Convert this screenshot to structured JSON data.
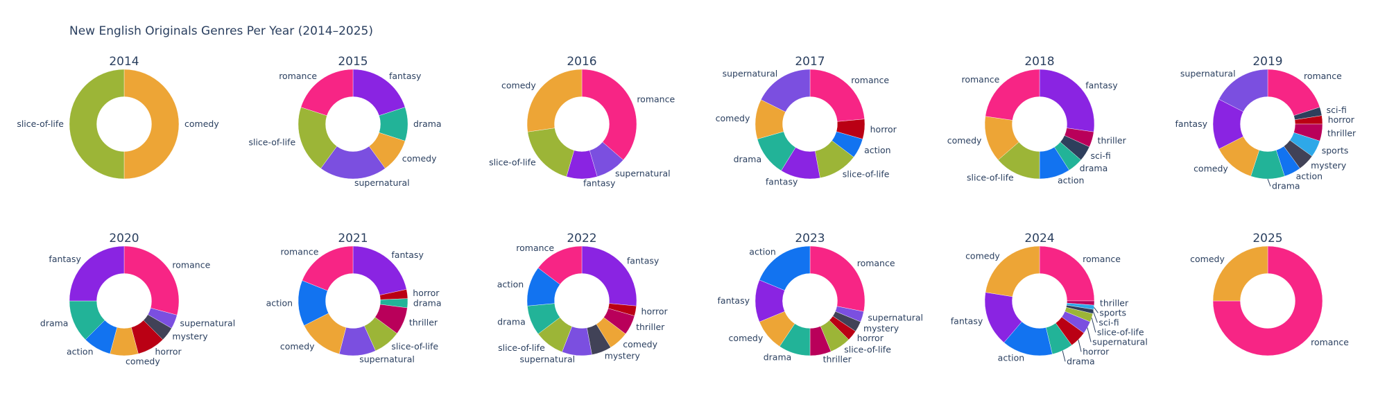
{
  "chart_data": {
    "type": "pie",
    "title": "New English Originals Genres Per Year (2014–2025)",
    "hole": 0.5,
    "direction": "clockwise",
    "colors": {
      "romance": "#f72585",
      "fantasy": "#8a24e2",
      "drama": "#22b398",
      "comedy": "#eda536",
      "slice-of-life": "#9cb537",
      "supernatural": "#7b4fe0",
      "horror": "#ba0014",
      "action": "#1273f0",
      "thriller": "#b9005a",
      "sci-fi": "#2e3f5c",
      "sports": "#2ea8e8",
      "mystery": "#414257"
    },
    "pies": [
      {
        "year": "2014",
        "slices": [
          [
            "comedy",
            1
          ],
          [
            "slice-of-life",
            1
          ]
        ]
      },
      {
        "year": "2015",
        "slices": [
          [
            "fantasy",
            2
          ],
          [
            "drama",
            1
          ],
          [
            "comedy",
            1
          ],
          [
            "supernatural",
            2
          ],
          [
            "slice-of-life",
            2
          ],
          [
            "romance",
            2
          ]
        ]
      },
      {
        "year": "2016",
        "slices": [
          [
            "romance",
            4
          ],
          [
            "supernatural",
            1
          ],
          [
            "fantasy",
            1
          ],
          [
            "slice-of-life",
            2
          ],
          [
            "comedy",
            3
          ]
        ]
      },
      {
        "year": "2017",
        "slices": [
          [
            "romance",
            4
          ],
          [
            "horror",
            1
          ],
          [
            "action",
            1
          ],
          [
            "slice-of-life",
            2
          ],
          [
            "fantasy",
            2
          ],
          [
            "drama",
            2
          ],
          [
            "comedy",
            2
          ],
          [
            "supernatural",
            3
          ]
        ]
      },
      {
        "year": "2018",
        "slices": [
          [
            "fantasy",
            6
          ],
          [
            "thriller",
            1
          ],
          [
            "sci-fi",
            1
          ],
          [
            "drama",
            1
          ],
          [
            "action",
            2
          ],
          [
            "slice-of-life",
            3
          ],
          [
            "comedy",
            3
          ],
          [
            "romance",
            5
          ]
        ]
      },
      {
        "year": "2019",
        "slices": [
          [
            "romance",
            8
          ],
          [
            "sci-fi",
            1
          ],
          [
            "horror",
            1
          ],
          [
            "thriller",
            2
          ],
          [
            "sports",
            2
          ],
          [
            "mystery",
            2
          ],
          [
            "action",
            2
          ],
          [
            "drama",
            4
          ],
          [
            "comedy",
            5
          ],
          [
            "fantasy",
            6
          ],
          [
            "supernatural",
            7
          ]
        ]
      },
      {
        "year": "2020",
        "slices": [
          [
            "romance",
            7
          ],
          [
            "supernatural",
            1
          ],
          [
            "mystery",
            1
          ],
          [
            "horror",
            2
          ],
          [
            "comedy",
            2
          ],
          [
            "action",
            2
          ],
          [
            "drama",
            3
          ],
          [
            "fantasy",
            6
          ]
        ]
      },
      {
        "year": "2021",
        "slices": [
          [
            "fantasy",
            8
          ],
          [
            "horror",
            1
          ],
          [
            "drama",
            1
          ],
          [
            "thriller",
            3
          ],
          [
            "slice-of-life",
            3
          ],
          [
            "supernatural",
            4
          ],
          [
            "comedy",
            5
          ],
          [
            "action",
            5
          ],
          [
            "romance",
            7
          ]
        ]
      },
      {
        "year": "2022",
        "slices": [
          [
            "fantasy",
            9
          ],
          [
            "horror",
            1
          ],
          [
            "thriller",
            2
          ],
          [
            "comedy",
            2
          ],
          [
            "mystery",
            2
          ],
          [
            "supernatural",
            3
          ],
          [
            "slice-of-life",
            3
          ],
          [
            "drama",
            3
          ],
          [
            "action",
            4
          ],
          [
            "romance",
            5
          ]
        ]
      },
      {
        "year": "2023",
        "slices": [
          [
            "romance",
            9
          ],
          [
            "supernatural",
            1
          ],
          [
            "mystery",
            1
          ],
          [
            "horror",
            1
          ],
          [
            "slice-of-life",
            2
          ],
          [
            "thriller",
            2
          ],
          [
            "drama",
            3
          ],
          [
            "comedy",
            3
          ],
          [
            "fantasy",
            4
          ],
          [
            "action",
            6
          ]
        ]
      },
      {
        "year": "2024",
        "slices": [
          [
            "romance",
            20
          ],
          [
            "thriller",
            1
          ],
          [
            "sports",
            1
          ],
          [
            "sci-fi",
            1
          ],
          [
            "slice-of-life",
            2
          ],
          [
            "supernatural",
            3
          ],
          [
            "horror",
            4
          ],
          [
            "drama",
            5
          ],
          [
            "action",
            12
          ],
          [
            "fantasy",
            13
          ],
          [
            "comedy",
            18
          ]
        ]
      },
      {
        "year": "2025",
        "slices": [
          [
            "romance",
            3
          ],
          [
            "comedy",
            1
          ]
        ]
      }
    ]
  }
}
